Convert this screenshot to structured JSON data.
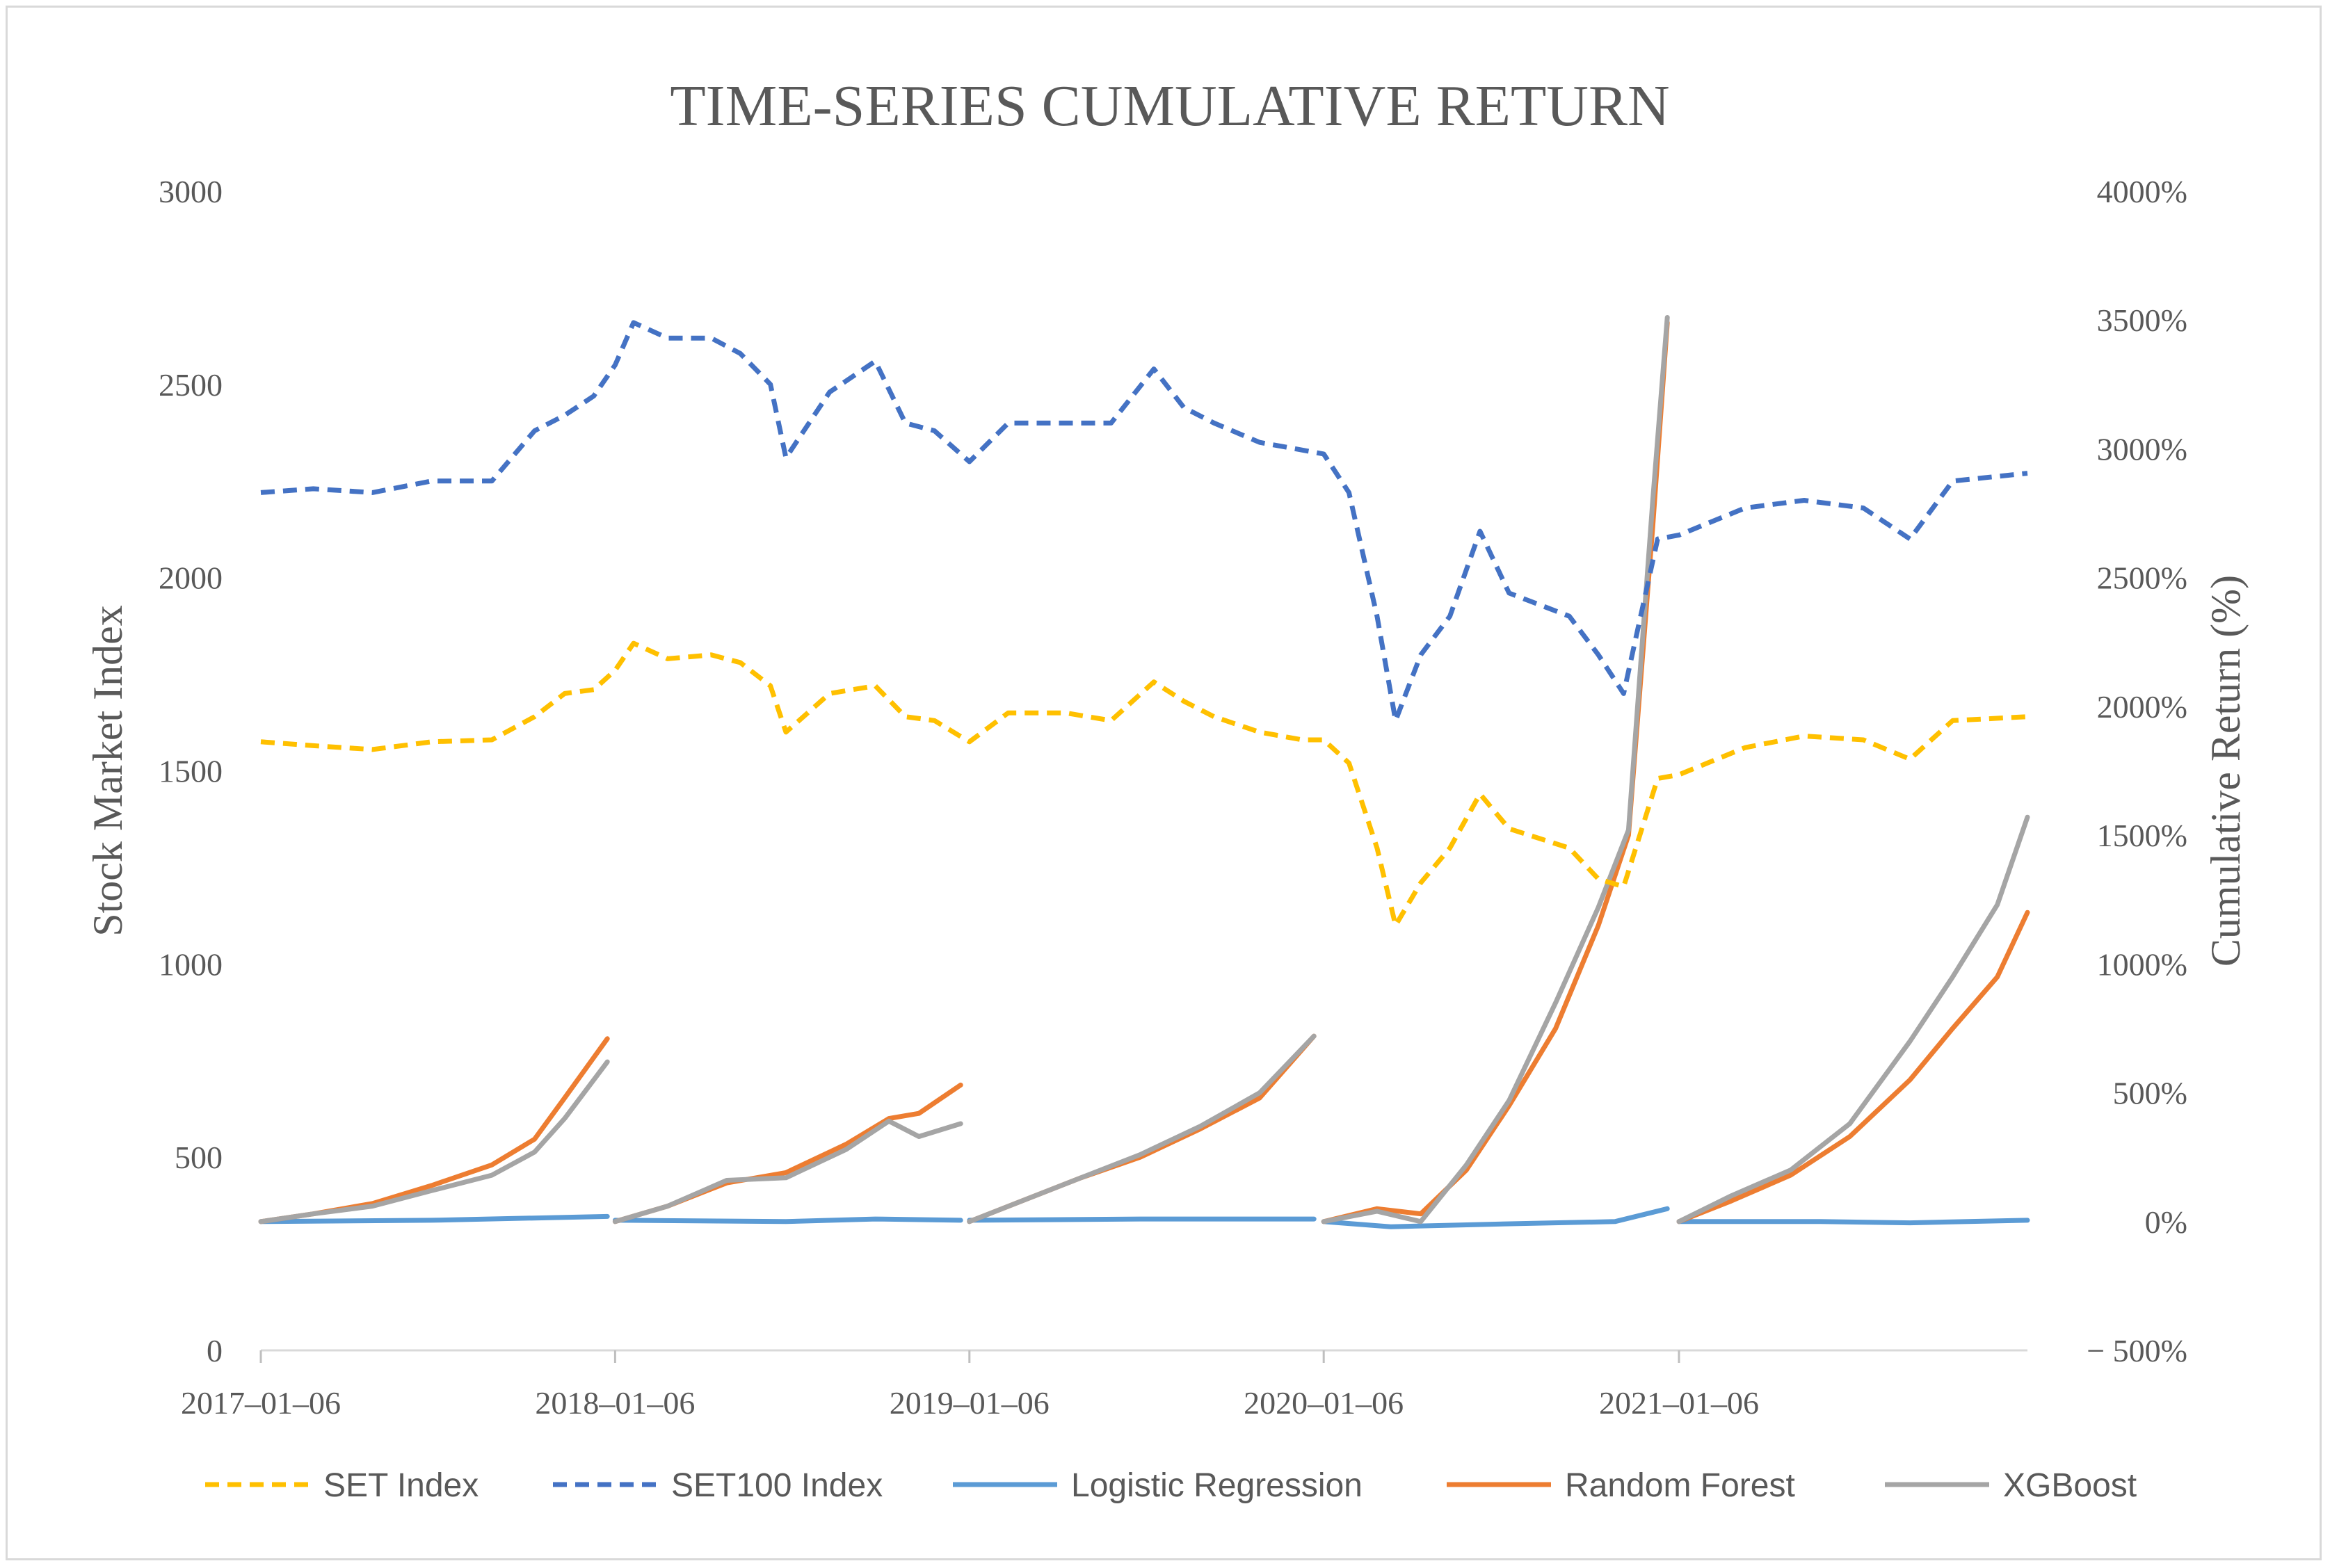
{
  "chart_data": {
    "type": "line",
    "title": "TIME-SERIES  CUMULATIVE RETURN",
    "y_left_label": "Stock Market Index",
    "y_right_label": "Cumulative Return (%)",
    "y_left_ticks": [
      "0",
      "500",
      "1000",
      "1500",
      "2000",
      "2500",
      "3000"
    ],
    "y_right_ticks": [
      "− 500%",
      "0%",
      "500%",
      "1000%",
      "1500%",
      "2000%",
      "2500%",
      "3000%",
      "3500%",
      "4000%"
    ],
    "y_left_range": [
      0,
      3000
    ],
    "y_right_range": [
      -500,
      4000
    ],
    "x_tick_labels": [
      "2017–01–06",
      "2018–01–06",
      "2019–01–06",
      "2020–01–06",
      "2021–01–06"
    ],
    "x_range": [
      "2017-01-06",
      "2021-12-31"
    ],
    "legend_position": "bottom",
    "series": [
      {
        "name": "SET Index",
        "axis": "left",
        "style": "dashed",
        "color": "#FFC000",
        "points": [
          [
            "2017-01-06",
            1575
          ],
          [
            "2017-03-01",
            1565
          ],
          [
            "2017-05-01",
            1555
          ],
          [
            "2017-07-01",
            1575
          ],
          [
            "2017-09-01",
            1580
          ],
          [
            "2017-10-15",
            1640
          ],
          [
            "2017-11-15",
            1700
          ],
          [
            "2017-12-15",
            1710
          ],
          [
            "2018-01-06",
            1760
          ],
          [
            "2018-01-25",
            1830
          ],
          [
            "2018-03-01",
            1790
          ],
          [
            "2018-04-15",
            1800
          ],
          [
            "2018-05-15",
            1780
          ],
          [
            "2018-06-15",
            1720
          ],
          [
            "2018-07-01",
            1600
          ],
          [
            "2018-08-15",
            1700
          ],
          [
            "2018-10-01",
            1720
          ],
          [
            "2018-11-01",
            1640
          ],
          [
            "2018-12-01",
            1630
          ],
          [
            "2019-01-06",
            1575
          ],
          [
            "2019-02-15",
            1650
          ],
          [
            "2019-04-15",
            1650
          ],
          [
            "2019-06-01",
            1630
          ],
          [
            "2019-07-15",
            1730
          ],
          [
            "2019-08-15",
            1680
          ],
          [
            "2019-09-15",
            1640
          ],
          [
            "2019-11-01",
            1600
          ],
          [
            "2019-12-15",
            1580
          ],
          [
            "2020-01-06",
            1580
          ],
          [
            "2020-02-01",
            1520
          ],
          [
            "2020-03-01",
            1300
          ],
          [
            "2020-03-20",
            1100
          ],
          [
            "2020-04-15",
            1210
          ],
          [
            "2020-05-15",
            1300
          ],
          [
            "2020-06-15",
            1440
          ],
          [
            "2020-07-15",
            1350
          ],
          [
            "2020-09-15",
            1300
          ],
          [
            "2020-10-15",
            1220
          ],
          [
            "2020-11-10",
            1200
          ],
          [
            "2020-12-15",
            1480
          ],
          [
            "2021-01-06",
            1490
          ],
          [
            "2021-03-15",
            1560
          ],
          [
            "2021-05-15",
            1590
          ],
          [
            "2021-07-15",
            1580
          ],
          [
            "2021-09-01",
            1530
          ],
          [
            "2021-10-15",
            1630
          ],
          [
            "2021-12-31",
            1640
          ]
        ]
      },
      {
        "name": "SET100 Index",
        "axis": "left",
        "style": "dashed",
        "color": "#4472C4",
        "points": [
          [
            "2017-01-06",
            2220
          ],
          [
            "2017-03-01",
            2230
          ],
          [
            "2017-05-01",
            2220
          ],
          [
            "2017-07-01",
            2250
          ],
          [
            "2017-09-01",
            2250
          ],
          [
            "2017-10-15",
            2380
          ],
          [
            "2017-11-15",
            2420
          ],
          [
            "2017-12-15",
            2470
          ],
          [
            "2018-01-06",
            2550
          ],
          [
            "2018-01-25",
            2660
          ],
          [
            "2018-03-01",
            2620
          ],
          [
            "2018-04-15",
            2620
          ],
          [
            "2018-05-15",
            2580
          ],
          [
            "2018-06-15",
            2500
          ],
          [
            "2018-07-01",
            2310
          ],
          [
            "2018-08-15",
            2480
          ],
          [
            "2018-10-01",
            2560
          ],
          [
            "2018-11-01",
            2400
          ],
          [
            "2018-12-01",
            2380
          ],
          [
            "2019-01-06",
            2300
          ],
          [
            "2019-02-15",
            2400
          ],
          [
            "2019-04-15",
            2400
          ],
          [
            "2019-06-01",
            2400
          ],
          [
            "2019-07-15",
            2540
          ],
          [
            "2019-08-15",
            2440
          ],
          [
            "2019-09-15",
            2400
          ],
          [
            "2019-11-01",
            2350
          ],
          [
            "2019-12-15",
            2330
          ],
          [
            "2020-01-06",
            2320
          ],
          [
            "2020-02-01",
            2220
          ],
          [
            "2020-03-01",
            1900
          ],
          [
            "2020-03-20",
            1630
          ],
          [
            "2020-04-15",
            1800
          ],
          [
            "2020-05-15",
            1900
          ],
          [
            "2020-06-15",
            2120
          ],
          [
            "2020-07-15",
            1960
          ],
          [
            "2020-09-15",
            1900
          ],
          [
            "2020-10-15",
            1800
          ],
          [
            "2020-11-10",
            1700
          ],
          [
            "2020-12-15",
            2100
          ],
          [
            "2021-01-06",
            2110
          ],
          [
            "2021-03-15",
            2180
          ],
          [
            "2021-05-15",
            2200
          ],
          [
            "2021-07-15",
            2180
          ],
          [
            "2021-09-01",
            2100
          ],
          [
            "2021-10-15",
            2250
          ],
          [
            "2021-12-31",
            2270
          ]
        ]
      },
      {
        "name": "Logistic Regression",
        "axis": "right",
        "style": "solid",
        "color": "#5B9BD5",
        "segments": [
          [
            [
              "2017-01-06",
              0
            ],
            [
              "2017-07-01",
              5
            ],
            [
              "2017-12-29",
              20
            ]
          ],
          [
            [
              "2018-01-06",
              5
            ],
            [
              "2018-07-01",
              0
            ],
            [
              "2018-10-01",
              10
            ],
            [
              "2018-12-28",
              5
            ]
          ],
          [
            [
              "2019-01-06",
              5
            ],
            [
              "2019-07-01",
              10
            ],
            [
              "2019-12-27",
              10
            ]
          ],
          [
            [
              "2020-01-06",
              0
            ],
            [
              "2020-03-15",
              -20
            ],
            [
              "2020-07-01",
              -10
            ],
            [
              "2020-11-01",
              0
            ],
            [
              "2020-12-25",
              50
            ]
          ],
          [
            [
              "2021-01-06",
              0
            ],
            [
              "2021-06-01",
              0
            ],
            [
              "2021-09-01",
              -5
            ],
            [
              "2021-12-31",
              5
            ]
          ]
        ]
      },
      {
        "name": "Random Forest",
        "axis": "right",
        "style": "solid",
        "color": "#ED7D31",
        "segments": [
          [
            [
              "2017-01-06",
              0
            ],
            [
              "2017-03-01",
              30
            ],
            [
              "2017-05-01",
              70
            ],
            [
              "2017-07-01",
              140
            ],
            [
              "2017-09-01",
              220
            ],
            [
              "2017-10-15",
              320
            ],
            [
              "2017-11-15",
              480
            ],
            [
              "2017-12-29",
              710
            ]
          ],
          [
            [
              "2018-01-06",
              0
            ],
            [
              "2018-03-01",
              60
            ],
            [
              "2018-05-01",
              150
            ],
            [
              "2018-07-01",
              190
            ],
            [
              "2018-09-01",
              300
            ],
            [
              "2018-10-15",
              400
            ],
            [
              "2018-11-15",
              420
            ],
            [
              "2018-12-28",
              530
            ]
          ],
          [
            [
              "2019-01-06",
              0
            ],
            [
              "2019-03-01",
              80
            ],
            [
              "2019-05-01",
              170
            ],
            [
              "2019-07-01",
              250
            ],
            [
              "2019-09-01",
              360
            ],
            [
              "2019-11-01",
              480
            ],
            [
              "2019-12-27",
              720
            ]
          ],
          [
            [
              "2020-01-06",
              0
            ],
            [
              "2020-03-01",
              50
            ],
            [
              "2020-04-15",
              30
            ],
            [
              "2020-06-01",
              200
            ],
            [
              "2020-07-15",
              450
            ],
            [
              "2020-09-01",
              750
            ],
            [
              "2020-10-15",
              1150
            ],
            [
              "2020-11-15",
              1500
            ],
            [
              "2020-12-10",
              2700
            ],
            [
              "2020-12-25",
              3490
            ]
          ],
          [
            [
              "2021-01-06",
              0
            ],
            [
              "2021-03-01",
              80
            ],
            [
              "2021-05-01",
              180
            ],
            [
              "2021-07-01",
              330
            ],
            [
              "2021-09-01",
              550
            ],
            [
              "2021-10-15",
              750
            ],
            [
              "2021-11-30",
              950
            ],
            [
              "2021-12-31",
              1200
            ]
          ]
        ]
      },
      {
        "name": "XGBoost",
        "axis": "right",
        "style": "solid",
        "color": "#A5A5A5",
        "segments": [
          [
            [
              "2017-01-06",
              0
            ],
            [
              "2017-03-01",
              30
            ],
            [
              "2017-05-01",
              60
            ],
            [
              "2017-07-01",
              120
            ],
            [
              "2017-09-01",
              180
            ],
            [
              "2017-10-15",
              270
            ],
            [
              "2017-11-15",
              400
            ],
            [
              "2017-12-29",
              620
            ]
          ],
          [
            [
              "2018-01-06",
              0
            ],
            [
              "2018-03-01",
              60
            ],
            [
              "2018-05-01",
              160
            ],
            [
              "2018-07-01",
              170
            ],
            [
              "2018-09-01",
              280
            ],
            [
              "2018-10-15",
              390
            ],
            [
              "2018-11-15",
              330
            ],
            [
              "2018-12-28",
              380
            ]
          ],
          [
            [
              "2019-01-06",
              0
            ],
            [
              "2019-03-01",
              80
            ],
            [
              "2019-05-01",
              170
            ],
            [
              "2019-07-01",
              260
            ],
            [
              "2019-09-01",
              370
            ],
            [
              "2019-11-01",
              500
            ],
            [
              "2019-12-27",
              720
            ]
          ],
          [
            [
              "2020-01-06",
              0
            ],
            [
              "2020-03-01",
              40
            ],
            [
              "2020-04-15",
              0
            ],
            [
              "2020-06-01",
              220
            ],
            [
              "2020-07-15",
              470
            ],
            [
              "2020-09-01",
              850
            ],
            [
              "2020-10-15",
              1220
            ],
            [
              "2020-11-15",
              1520
            ],
            [
              "2020-12-10",
              2800
            ],
            [
              "2020-12-25",
              3510
            ]
          ],
          [
            [
              "2021-01-06",
              0
            ],
            [
              "2021-03-01",
              100
            ],
            [
              "2021-05-01",
              200
            ],
            [
              "2021-07-01",
              380
            ],
            [
              "2021-09-01",
              700
            ],
            [
              "2021-10-15",
              950
            ],
            [
              "2021-11-30",
              1230
            ],
            [
              "2021-12-31",
              1570
            ]
          ]
        ]
      }
    ]
  }
}
